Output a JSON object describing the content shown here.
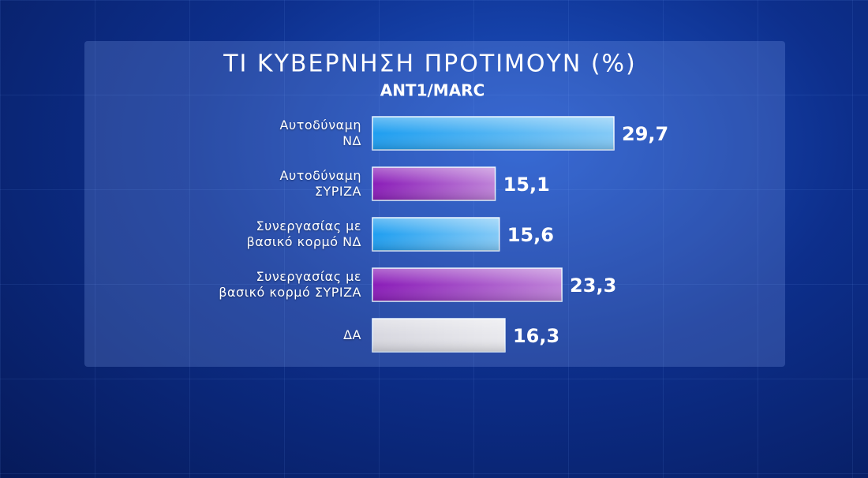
{
  "chart_data": {
    "type": "bar",
    "orientation": "horizontal",
    "title": "ΤΙ ΚΥΒΕΡΝΗΣΗ ΠΡΟΤΙΜΟΥΝ (%)",
    "subtitle": "ANT1/MARC",
    "categories": [
      "Αυτοδύναμη\nΝΔ",
      "Αυτοδύναμη\nΣΥΡΙΖΑ",
      "Συνεργασίας με\nβασικό κορμό ΝΔ",
      "Συνεργασίας με\nβασικό κορμό ΣΥΡΙΖΑ",
      "ΔΑ"
    ],
    "values": [
      29.7,
      15.1,
      15.6,
      23.3,
      16.3
    ],
    "value_labels": [
      "29,7",
      "15,1",
      "15,6",
      "23,3",
      "16,3"
    ],
    "colors": [
      "#1e9ef0",
      "#8a1cb8",
      "#1e9ef0",
      "#8a1cb8",
      "#d8d8e0"
    ]
  }
}
